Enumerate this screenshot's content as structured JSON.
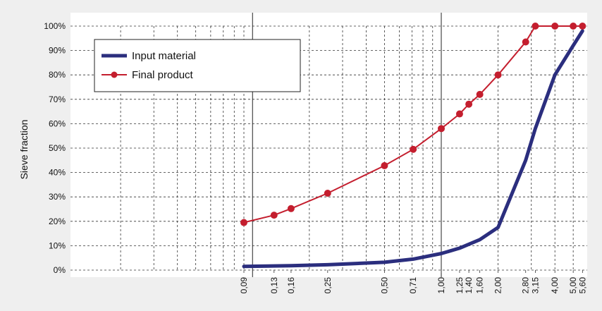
{
  "chart_data": {
    "type": "line",
    "ylabel": "Sieve fraction",
    "xscale": "log",
    "x_ticks": [
      "0,09",
      "0,13",
      "0,16",
      "0,25",
      "0,50",
      "0,71",
      "1,00",
      "1,25",
      "1,40",
      "1,60",
      "2,00",
      "2,80",
      "3,15",
      "4,00",
      "5,00",
      "5,60"
    ],
    "x_tick_values": [
      0.09,
      0.13,
      0.16,
      0.25,
      0.5,
      0.71,
      1.0,
      1.25,
      1.4,
      1.6,
      2.0,
      2.8,
      3.15,
      4.0,
      5.0,
      5.6
    ],
    "y_ticks": [
      "0%",
      "10%",
      "20%",
      "30%",
      "40%",
      "50%",
      "60%",
      "70%",
      "80%",
      "90%",
      "100%"
    ],
    "ylim": [
      0,
      100
    ],
    "grid": true,
    "legend_position": "top-left",
    "series": [
      {
        "name": "Input material",
        "color": "#2b2e7e",
        "x": [
          0.09,
          0.13,
          0.16,
          0.25,
          0.5,
          0.71,
          1.0,
          1.25,
          1.6,
          2.0,
          2.8,
          3.15,
          4.0,
          5.0,
          5.6
        ],
        "y": [
          1.5,
          1.7,
          1.8,
          2.2,
          3.2,
          4.5,
          6.8,
          9.0,
          12.5,
          17.5,
          45,
          58,
          80,
          92,
          98
        ]
      },
      {
        "name": "Final product",
        "color": "#c41e2e",
        "x": [
          0.09,
          0.13,
          0.16,
          0.25,
          0.5,
          0.71,
          1.0,
          1.25,
          1.4,
          1.6,
          2.0,
          2.8,
          3.15,
          4.0,
          5.0,
          5.6
        ],
        "y": [
          19.5,
          22.5,
          25.2,
          31.5,
          42.8,
          49.5,
          58,
          64,
          68,
          72,
          80,
          93.5,
          100,
          100,
          100,
          100
        ]
      }
    ]
  }
}
